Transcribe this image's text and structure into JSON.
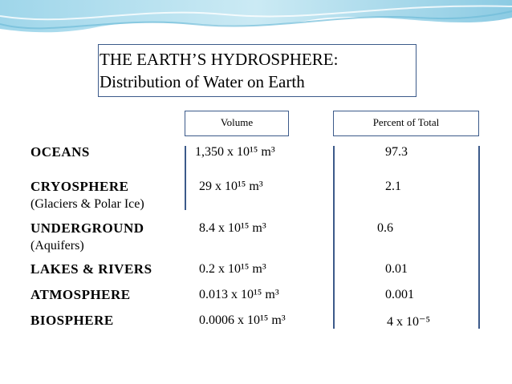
{
  "title": {
    "line1": "THE EARTH’S HYDROSPHERE:",
    "line2": "Distribution of Water on Earth"
  },
  "table": {
    "headers": [
      "Volume",
      "Percent of Total"
    ],
    "rows": [
      {
        "name": "OCEANS",
        "volume": "1,350 x 10¹⁵ m³",
        "percent": "97.3"
      },
      {
        "name": "CRYOSPHERE",
        "note": "(Glaciers & Polar Ice)",
        "volume": "29 x 10¹⁵ m³",
        "percent": "2.1"
      },
      {
        "name": "UNDERGROUND",
        "note": "(Aquifers)",
        "volume": "8.4 x 10¹⁵ m³",
        "percent": "0.6"
      },
      {
        "name": "LAKES & RIVERS",
        "volume": "0.2 x 10¹⁵ m³",
        "percent": "0.01"
      },
      {
        "name": "ATMOSPHERE",
        "volume": "0.013 x 10¹⁵ m³",
        "percent": "0.001"
      },
      {
        "name": "BIOSPHERE",
        "volume": "0.0006 x 10¹⁵ m³",
        "percent": "4 x 10⁻⁵"
      }
    ]
  }
}
